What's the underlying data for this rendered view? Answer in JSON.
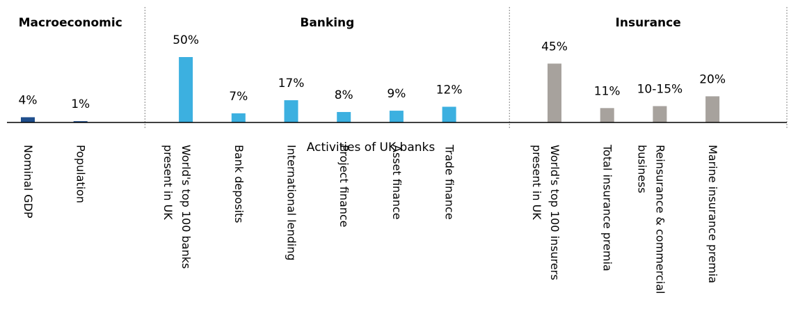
{
  "chart_data": {
    "type": "bar",
    "annotation": "Activities of UK banks",
    "groups": [
      {
        "name": "Macroeconomic",
        "color": "#1f4e8c",
        "categories": [
          "Nominal GDP",
          "Population"
        ],
        "values": [
          4,
          1
        ],
        "value_labels": [
          "4%",
          "1%"
        ]
      },
      {
        "name": "Banking",
        "color": "#3cb0e0",
        "categories": [
          "World's top 100 banks\npresent in UK",
          "Bank deposits",
          "International lending",
          "Project finance",
          "Asset finance",
          "Trade finance"
        ],
        "values": [
          50,
          7,
          17,
          8,
          9,
          12
        ],
        "value_labels": [
          "50%",
          "7%",
          "17%",
          "8%",
          "9%",
          "12%"
        ]
      },
      {
        "name": "Insurance",
        "color": "#a7a29d",
        "categories": [
          "World's top 100 insurers\npresent in UK",
          "Total insurance premia",
          "Reinsurance & commercial\nbusiness",
          "Marine insurance premia"
        ],
        "values": [
          45,
          11,
          12.5,
          20
        ],
        "value_labels": [
          "45%",
          "11%",
          "10-15%",
          "20%"
        ]
      }
    ]
  }
}
